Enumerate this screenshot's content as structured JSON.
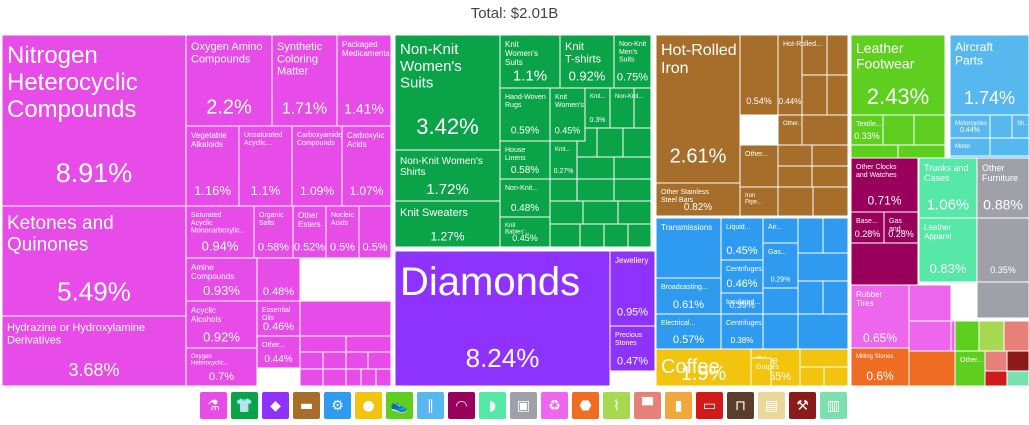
{
  "title": "Total: $2.01B",
  "colors": {
    "chemicals": "#e84ce8",
    "textiles": "#0aa348",
    "stones": "#8e33ff",
    "metals": "#a66e2a",
    "machines": "#2f9bf0",
    "foodstuffs": "#f2c40d",
    "footwear": "#5fcf1f",
    "instruments": "#57b8f0",
    "vegetable": "#99005b",
    "hides": "#55e8a7",
    "misc": "#a0a0a8",
    "rubber": "#ee66ee",
    "transport": "#ef6c22"
  },
  "chart_data": {
    "type": "treemap",
    "title": "Total: $2.01B",
    "cells": [
      {
        "label": "Nitrogen Heterocyclic Compounds",
        "value": "8.91%",
        "group": "chemicals"
      },
      {
        "label": "Ketones and Quinones",
        "value": "5.49%",
        "group": "chemicals"
      },
      {
        "label": "Hydrazine or Hydroxylamine Derivatives",
        "value": "3.68%",
        "group": "chemicals"
      },
      {
        "label": "Oxygen Amino Compounds",
        "value": "2.2%",
        "group": "chemicals"
      },
      {
        "label": "Synthetic Coloring Matter",
        "value": "1.71%",
        "group": "chemicals"
      },
      {
        "label": "Packaged Medicaments",
        "value": "1.41%",
        "group": "chemicals"
      },
      {
        "label": "Vegetable Alkaloids",
        "value": "1.16%",
        "group": "chemicals"
      },
      {
        "label": "Unsaturated Acyclic...",
        "value": "1.1%",
        "group": "chemicals"
      },
      {
        "label": "Carboxyamide Compounds",
        "value": "1.09%",
        "group": "chemicals"
      },
      {
        "label": "Carboxylic Acids",
        "value": "1.07%",
        "group": "chemicals"
      },
      {
        "label": "Saturated Acyclic Monocarboxylic...",
        "value": "0.94%",
        "group": "chemicals"
      },
      {
        "label": "Organic Salts",
        "value": "0.58%",
        "group": "chemicals"
      },
      {
        "label": "Other Esters",
        "value": "0.52%",
        "group": "chemicals"
      },
      {
        "label": "Nucleic Acids",
        "value": "0.5%",
        "group": "chemicals"
      },
      {
        "label": "",
        "value": "0.5%",
        "group": "chemicals"
      },
      {
        "label": "Amine Compounds",
        "value": "0.93%",
        "group": "chemicals"
      },
      {
        "label": "",
        "value": "0.48%",
        "group": "chemicals"
      },
      {
        "label": "Essential Oils",
        "value": "0.46%",
        "group": "chemicals"
      },
      {
        "label": "Acyclic Alcohols",
        "value": "0.92%",
        "group": "chemicals"
      },
      {
        "label": "Other...",
        "value": "0.44%",
        "group": "chemicals"
      },
      {
        "label": "Oxygen Heterocyclic...",
        "value": "0.7%",
        "group": "chemicals"
      },
      {
        "label": "Non-Knit Women's Suits",
        "value": "3.42%",
        "group": "textiles"
      },
      {
        "label": "Knit Women's Suits",
        "value": "1.1%",
        "group": "textiles"
      },
      {
        "label": "Knit T-shirts",
        "value": "0.92%",
        "group": "textiles"
      },
      {
        "label": "Non-Knit Men's Suits",
        "value": "0.75%",
        "group": "textiles"
      },
      {
        "label": "Hand-Woven Rugs",
        "value": "0.59%",
        "group": "textiles"
      },
      {
        "label": "Knit Women's...",
        "value": "0.45%",
        "group": "textiles"
      },
      {
        "label": "Knit...",
        "value": "0.3%",
        "group": "textiles"
      },
      {
        "label": "Non-Knit...",
        "value": "",
        "group": "textiles"
      },
      {
        "label": "House Linens",
        "value": "0.58%",
        "group": "textiles"
      },
      {
        "label": "Knit...",
        "value": "0.27%",
        "group": "textiles"
      },
      {
        "label": "Non-Knit...",
        "value": "0.48%",
        "group": "textiles"
      },
      {
        "label": "Knit Babies'...",
        "value": "0.45%",
        "group": "textiles"
      },
      {
        "label": "Non-Knit Women's Shirts",
        "value": "1.72%",
        "group": "textiles"
      },
      {
        "label": "Knit Sweaters",
        "value": "1.27%",
        "group": "textiles"
      },
      {
        "label": "Diamonds",
        "value": "8.24%",
        "group": "stones"
      },
      {
        "label": "Jewellery",
        "value": "0.95%",
        "group": "stones"
      },
      {
        "label": "Precious Stones",
        "value": "0.47%",
        "group": "stones"
      },
      {
        "label": "Hot-Rolled Iron",
        "value": "2.61%",
        "group": "metals"
      },
      {
        "label": "",
        "value": "0.54%",
        "group": "metals"
      },
      {
        "label": "Hot-Rolled...",
        "value": "0.44%",
        "group": "metals"
      },
      {
        "label": "Other...",
        "value": "",
        "group": "metals"
      },
      {
        "label": "Other Stainless Steel Bars",
        "value": "0.82%",
        "group": "metals"
      },
      {
        "label": "Other...",
        "value": "",
        "group": "metals"
      },
      {
        "label": "Iron Pipe...",
        "value": "",
        "group": "metals"
      },
      {
        "label": "Transmissions",
        "value": "1.05%",
        "group": "machines"
      },
      {
        "label": "Liquid...",
        "value": "0.45%",
        "group": "machines"
      },
      {
        "label": "Centrifuges",
        "value": "0.46%",
        "group": "machines"
      },
      {
        "label": "Broadcasting...",
        "value": "0.61%",
        "group": "machines"
      },
      {
        "label": "Insulated...",
        "value": "0.39%",
        "group": "machines"
      },
      {
        "label": "Electrical...",
        "value": "0.57%",
        "group": "machines"
      },
      {
        "label": "Centrifuges",
        "value": "0.38%",
        "group": "machines"
      },
      {
        "label": "Gas...",
        "value": "0.29%",
        "group": "machines"
      },
      {
        "label": "Air...",
        "value": "",
        "group": "machines"
      },
      {
        "label": "Coffee",
        "value": "1.9%",
        "group": "foodstuffs"
      },
      {
        "label": "Rice",
        "value": "0.55%",
        "group": "foodstuffs"
      },
      {
        "label": "Grapes",
        "value": "",
        "group": "foodstuffs"
      },
      {
        "label": "Leather Footwear",
        "value": "2.43%",
        "group": "footwear"
      },
      {
        "label": "Textile...",
        "value": "0.33%",
        "group": "footwear"
      },
      {
        "label": "Aircraft Parts",
        "value": "1.74%",
        "group": "instruments"
      },
      {
        "label": "Motorcycles and...",
        "value": "0.44%",
        "group": "instruments"
      },
      {
        "label": "Motor vehicles...",
        "value": "",
        "group": "instruments"
      },
      {
        "label": "Sh...",
        "value": "",
        "group": "instruments"
      },
      {
        "label": "Other Clocks and Watches",
        "value": "0.71%",
        "group": "vegetable"
      },
      {
        "label": "Base...",
        "value": "0.28%",
        "group": "vegetable"
      },
      {
        "label": "Gas and...",
        "value": "0.28%",
        "group": "vegetable"
      },
      {
        "label": "Trunks and Cases",
        "value": "1.06%",
        "group": "hides"
      },
      {
        "label": "Leather Apparel",
        "value": "0.83%",
        "group": "hides"
      },
      {
        "label": "Other Furniture",
        "value": "0.88%",
        "group": "misc"
      },
      {
        "label": "",
        "value": "0.35%",
        "group": "misc"
      },
      {
        "label": "Rubber Tires",
        "value": "0.65%",
        "group": "rubber"
      },
      {
        "label": "Milling Stones",
        "value": "0.6%",
        "group": "transport"
      },
      {
        "label": "Other...",
        "value": "",
        "group": "footwear"
      }
    ]
  },
  "legend": [
    {
      "icon": "flask-icon",
      "glyph": "⚗",
      "color": "#e84ce8"
    },
    {
      "icon": "shirt-icon",
      "glyph": "👕",
      "color": "#0aa348"
    },
    {
      "icon": "gem-icon",
      "glyph": "◆",
      "color": "#8e33ff"
    },
    {
      "icon": "anvil-icon",
      "glyph": "▬",
      "color": "#a66e2a"
    },
    {
      "icon": "gear-icon",
      "glyph": "⚙",
      "color": "#2f9bf0"
    },
    {
      "icon": "fruit-icon",
      "glyph": "●",
      "color": "#f2c40d"
    },
    {
      "icon": "shoe-icon",
      "glyph": "👟",
      "color": "#5fcf1f"
    },
    {
      "icon": "road-icon",
      "glyph": "∥",
      "color": "#57b8f0"
    },
    {
      "icon": "gauge-icon",
      "glyph": "◠",
      "color": "#99005b"
    },
    {
      "icon": "hide-icon",
      "glyph": "◗",
      "color": "#55e8a7"
    },
    {
      "icon": "box-icon",
      "glyph": "▣",
      "color": "#a0a0a8"
    },
    {
      "icon": "recycle-icon",
      "glyph": "♻",
      "color": "#ee66ee"
    },
    {
      "icon": "stone-icon",
      "glyph": "⬣",
      "color": "#ef6c22"
    },
    {
      "icon": "wheat-icon",
      "glyph": "⌇",
      "color": "#a6d94f"
    },
    {
      "icon": "cow-icon",
      "glyph": "▀",
      "color": "#e8807a"
    },
    {
      "icon": "bottle-icon",
      "glyph": "▮",
      "color": "#f0a73c"
    },
    {
      "icon": "plane-icon",
      "glyph": "▭",
      "color": "#d11a1a"
    },
    {
      "icon": "easel-icon",
      "glyph": "⊓",
      "color": "#5a3d2b"
    },
    {
      "icon": "scroll-icon",
      "glyph": "▤",
      "color": "#e9d79c"
    },
    {
      "icon": "hammer-icon",
      "glyph": "⚒",
      "color": "#8b1a1a"
    },
    {
      "icon": "tiles-icon",
      "glyph": "▥",
      "color": "#7be0b0"
    }
  ]
}
